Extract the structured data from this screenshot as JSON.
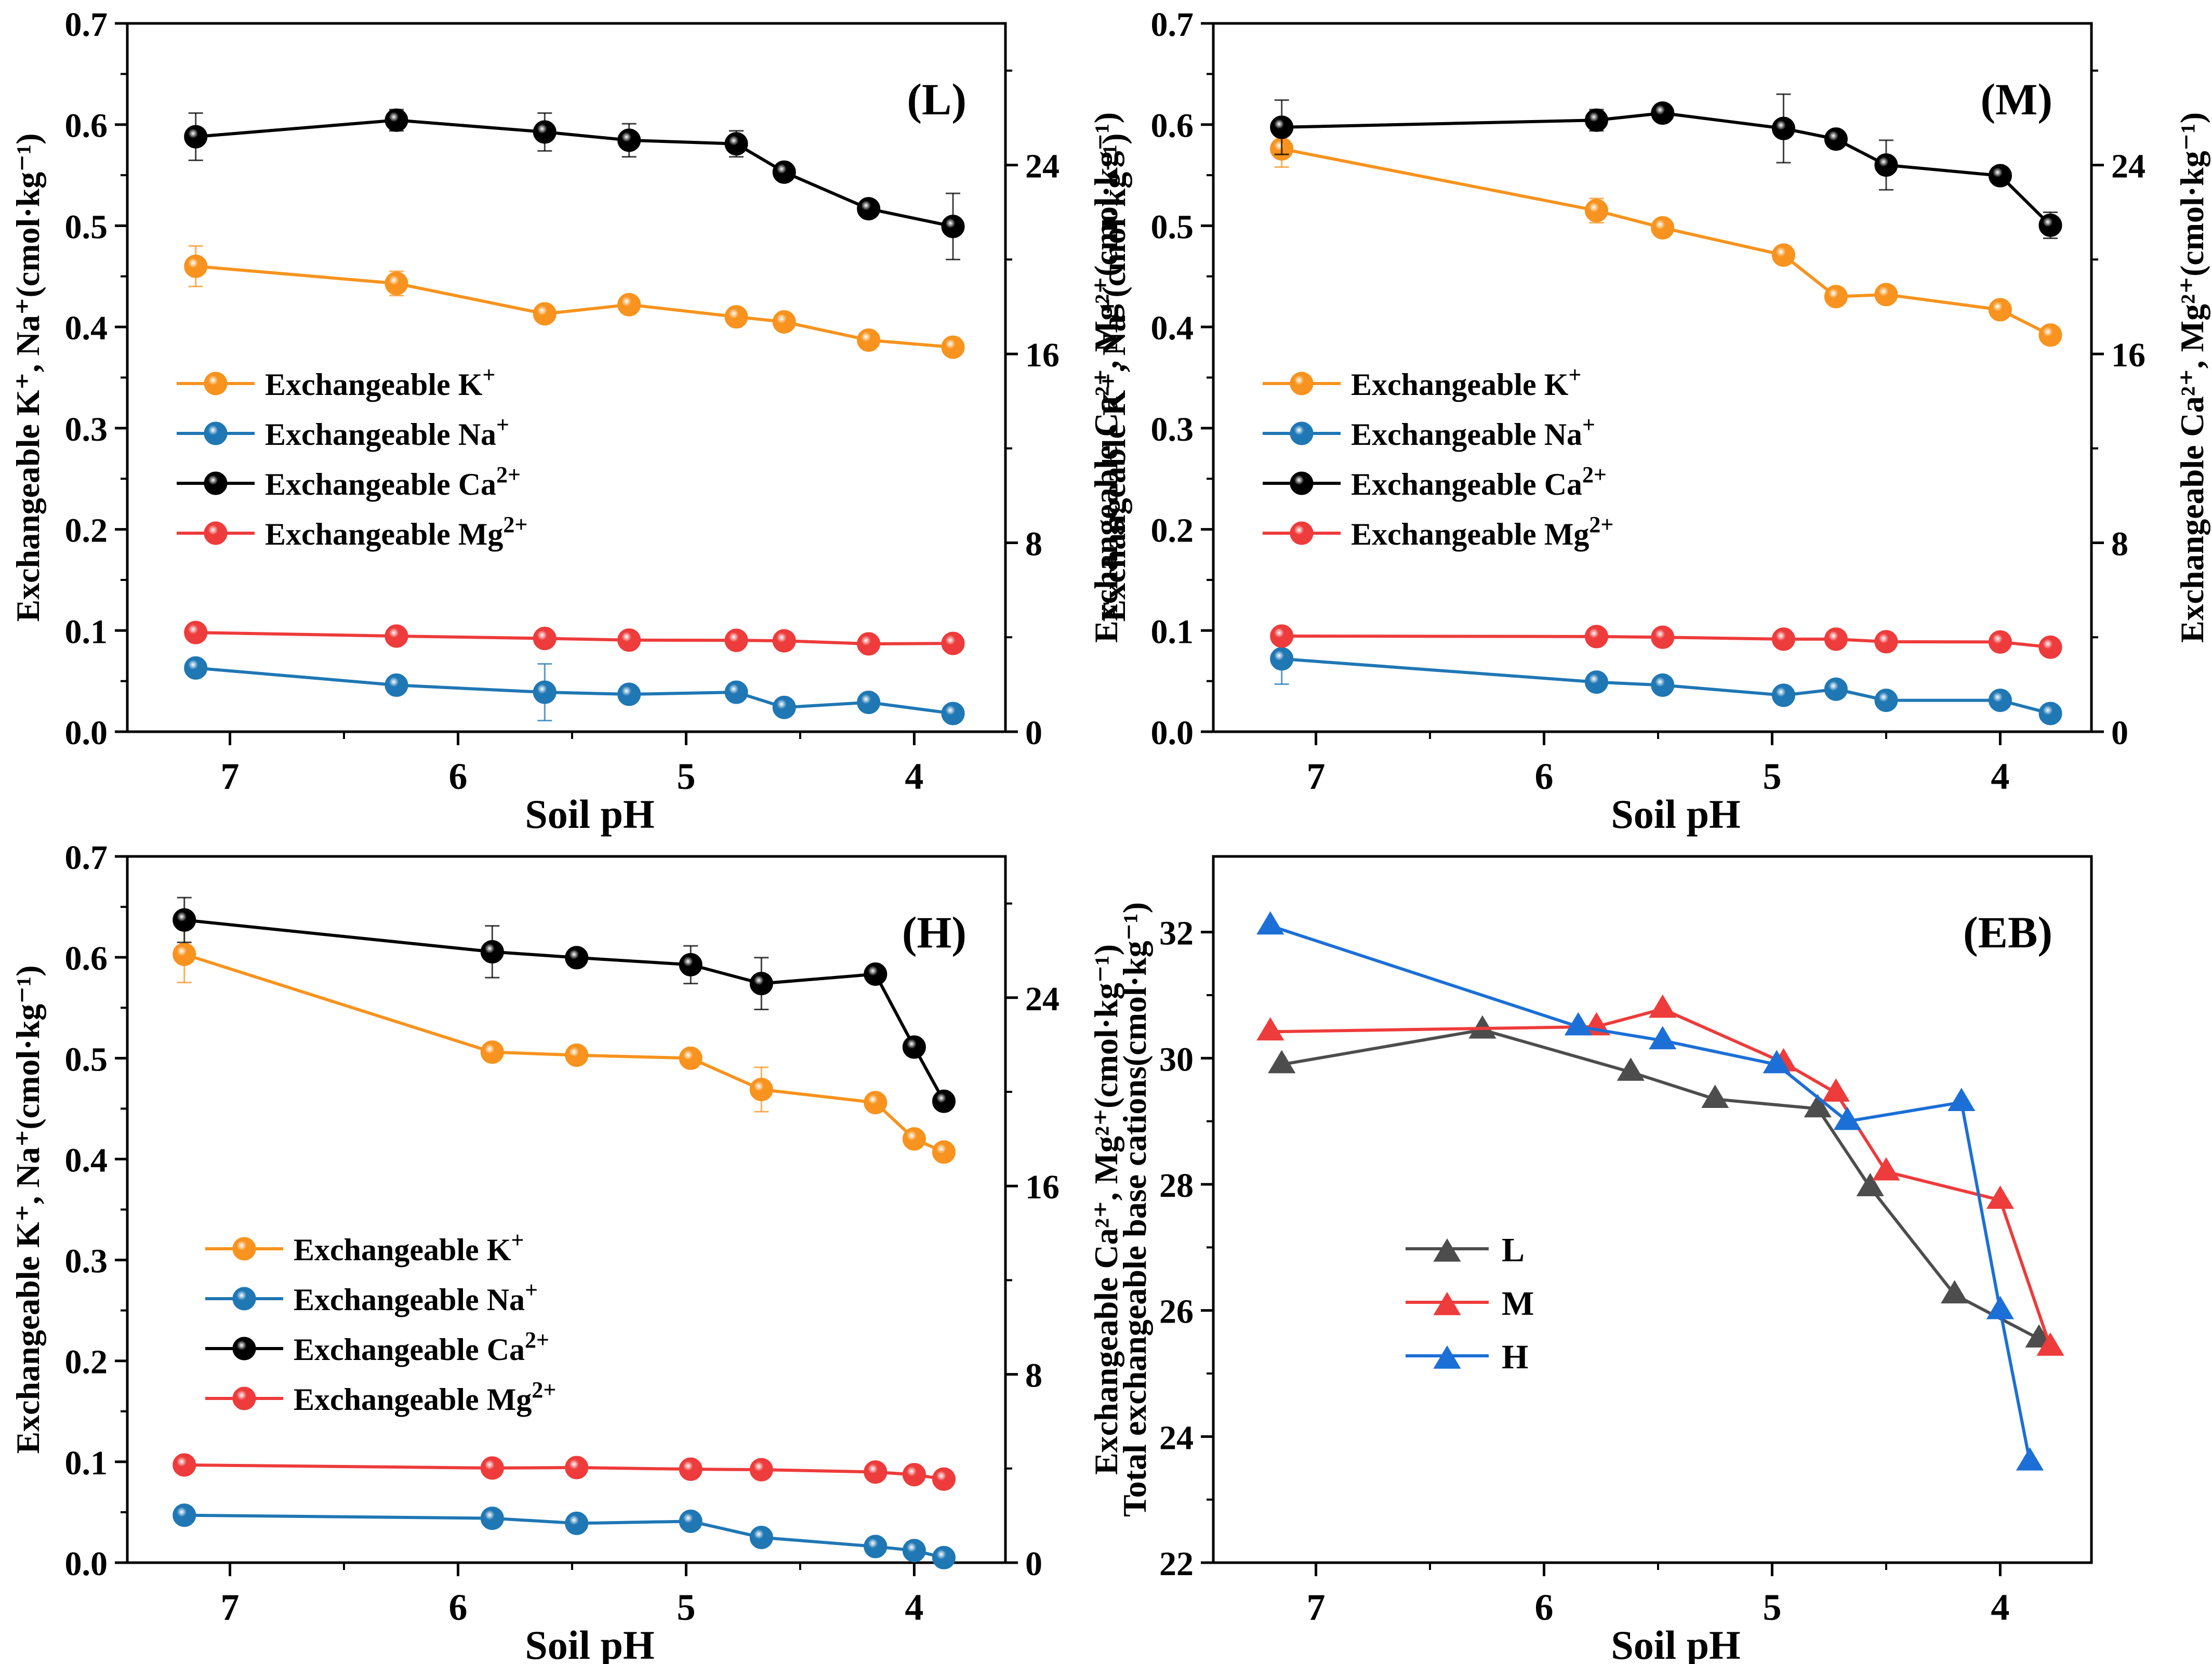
{
  "colors": {
    "K": "#F7931E",
    "Na": "#1F77B4",
    "Ca": "#000000",
    "Mg": "#EE3B3B",
    "L": "#4D4D4D",
    "M": "#EE3B3B",
    "H": "#1C6FD6"
  },
  "chart_data": [
    {
      "id": "L",
      "type": "line",
      "panel_label": "(L)",
      "xlabel": "Soil pH",
      "ylabel_left": "Exchangeable K⁺, Na⁺(cmol·kg⁻¹)",
      "ylabel_right": "Exchangeable Ca²⁺, Mg²⁺(cmol·kg⁻¹)",
      "xlim": [
        7.45,
        3.6
      ],
      "ylim_left": [
        0,
        0.7
      ],
      "ylim_right": [
        0,
        30
      ],
      "x_ticks": [
        "7",
        "6",
        "5",
        "4"
      ],
      "y_ticks_left": [
        "0.0",
        "0.1",
        "0.2",
        "0.3",
        "0.4",
        "0.5",
        "0.6",
        "0.7"
      ],
      "y_ticks_right": [
        "0",
        "8",
        "16",
        "24"
      ],
      "legend": {
        "position": "left-middle",
        "entries": [
          {
            "base": "Exchangeable K",
            "sup": "+"
          },
          {
            "base": "Exchangeable Na",
            "sup": "+"
          },
          {
            "base": "Exchangeable Ca",
            "sup": "2+"
          },
          {
            "base": "Exchangeable Mg",
            "sup": "2+"
          }
        ]
      },
      "series": [
        {
          "name": "Exchangeable K+",
          "color_key": "K",
          "axis": "left",
          "x": [
            7.15,
            6.27,
            5.62,
            5.25,
            4.78,
            4.57,
            4.2,
            3.83
          ],
          "y": [
            0.46,
            0.443,
            0.413,
            0.422,
            0.41,
            0.405,
            0.387,
            0.38
          ],
          "err": [
            0.02,
            0.012,
            0,
            0,
            0,
            0,
            0,
            0
          ]
        },
        {
          "name": "Exchangeable Na+",
          "color_key": "Na",
          "axis": "left",
          "x": [
            7.15,
            6.27,
            5.62,
            5.25,
            4.78,
            4.57,
            4.2,
            3.83
          ],
          "y": [
            0.063,
            0.046,
            0.039,
            0.037,
            0.039,
            0.024,
            0.029,
            0.018
          ],
          "err": [
            0,
            0,
            0.028,
            0,
            0,
            0,
            0,
            0
          ]
        },
        {
          "name": "Exchangeable Ca2+",
          "color_key": "Ca",
          "axis": "right",
          "x": [
            7.15,
            6.27,
            5.62,
            5.25,
            4.78,
            4.57,
            4.2,
            3.83
          ],
          "y": [
            25.2,
            25.9,
            25.4,
            25.05,
            24.9,
            23.7,
            22.15,
            21.4
          ],
          "err": [
            1.0,
            0.45,
            0.8,
            0.7,
            0.55,
            0,
            0,
            1.4
          ]
        },
        {
          "name": "Exchangeable Mg2+",
          "color_key": "Mg",
          "axis": "right",
          "x": [
            7.15,
            6.27,
            5.62,
            5.25,
            4.78,
            4.57,
            4.2,
            3.83
          ],
          "y": [
            4.2,
            4.05,
            3.95,
            3.88,
            3.87,
            3.85,
            3.72,
            3.74
          ],
          "err": [
            0,
            0,
            0,
            0,
            0,
            0,
            0,
            0
          ]
        }
      ]
    },
    {
      "id": "M",
      "type": "line",
      "panel_label": "(M)",
      "xlabel": "Soil pH",
      "ylabel_left": "Exchangeable K⁺, Na⁺(cmol·kg⁻¹)",
      "ylabel_right": "Exchangeable Ca²⁺, Mg²⁺(cmol·kg⁻¹)",
      "xlim": [
        7.45,
        3.6
      ],
      "ylim_left": [
        0,
        0.7
      ],
      "ylim_right": [
        0,
        30
      ],
      "x_ticks": [
        "7",
        "6",
        "5",
        "4"
      ],
      "y_ticks_left": [
        "0.0",
        "0.1",
        "0.2",
        "0.3",
        "0.4",
        "0.5",
        "0.6",
        "0.7"
      ],
      "y_ticks_right": [
        "0",
        "8",
        "16",
        "24"
      ],
      "legend": {
        "position": "left-middle",
        "entries": [
          {
            "base": "Exchangeable K",
            "sup": "+"
          },
          {
            "base": "Exchangeable Na",
            "sup": "+"
          },
          {
            "base": "Exchangeable Ca",
            "sup": "2+"
          },
          {
            "base": "Exchangeable Mg",
            "sup": "2+"
          }
        ]
      },
      "series": [
        {
          "name": "Exchangeable K+",
          "color_key": "K",
          "axis": "left",
          "x": [
            7.15,
            5.77,
            5.48,
            4.95,
            4.72,
            4.5,
            4.0,
            3.78
          ],
          "y": [
            0.576,
            0.515,
            0.498,
            0.471,
            0.43,
            0.432,
            0.417,
            0.392
          ],
          "err": [
            0.018,
            0.012,
            0,
            0,
            0,
            0,
            0,
            0
          ]
        },
        {
          "name": "Exchangeable Na+",
          "color_key": "Na",
          "axis": "left",
          "x": [
            7.15,
            5.77,
            5.48,
            4.95,
            4.72,
            4.5,
            4.0,
            3.78
          ],
          "y": [
            0.072,
            0.049,
            0.046,
            0.036,
            0.042,
            0.031,
            0.031,
            0.018
          ],
          "err": [
            0.025,
            0,
            0,
            0,
            0,
            0,
            0,
            0
          ]
        },
        {
          "name": "Exchangeable Ca2+",
          "color_key": "Ca",
          "axis": "right",
          "x": [
            7.15,
            5.77,
            5.48,
            4.95,
            4.72,
            4.5,
            4.0,
            3.78
          ],
          "y": [
            25.6,
            25.9,
            26.2,
            25.55,
            25.1,
            24.0,
            23.55,
            21.45
          ],
          "err": [
            1.15,
            0.45,
            0,
            1.45,
            0,
            1.05,
            0,
            0.55
          ]
        },
        {
          "name": "Exchangeable Mg2+",
          "color_key": "Mg",
          "axis": "right",
          "x": [
            7.15,
            5.77,
            5.48,
            4.95,
            4.72,
            4.5,
            4.0,
            3.78
          ],
          "y": [
            4.05,
            4.03,
            4.0,
            3.92,
            3.92,
            3.81,
            3.8,
            3.58
          ],
          "err": [
            0,
            0,
            0,
            0,
            0,
            0,
            0,
            0
          ]
        }
      ]
    },
    {
      "id": "H",
      "type": "line",
      "panel_label": "(H)",
      "xlabel": "Soil pH",
      "ylabel_left": "Exchangeable K⁺, Na⁺(cmol·kg⁻¹)",
      "ylabel_right": "Exchangeable Ca²⁺, Mg²⁺(cmol·kg⁻¹)",
      "xlim": [
        7.45,
        3.6
      ],
      "ylim_left": [
        0,
        0.7
      ],
      "ylim_right": [
        0,
        30
      ],
      "x_ticks": [
        "7",
        "6",
        "5",
        "4"
      ],
      "y_ticks_left": [
        "0.0",
        "0.1",
        "0.2",
        "0.3",
        "0.4",
        "0.5",
        "0.6",
        "0.7"
      ],
      "y_ticks_right": [
        "0",
        "8",
        "16",
        "24"
      ],
      "legend": {
        "position": "left-middle",
        "entries": [
          {
            "base": "Exchangeable K",
            "sup": "+"
          },
          {
            "base": "Exchangeable Na",
            "sup": "+"
          },
          {
            "base": "Exchangeable Ca",
            "sup": "2+"
          },
          {
            "base": "Exchangeable Mg",
            "sup": "2+"
          }
        ]
      },
      "series": [
        {
          "name": "Exchangeable K+",
          "color_key": "K",
          "axis": "left",
          "x": [
            7.2,
            5.85,
            5.48,
            4.98,
            4.67,
            4.17,
            4.0,
            3.87
          ],
          "y": [
            0.603,
            0.506,
            0.503,
            0.5,
            0.469,
            0.456,
            0.42,
            0.407
          ],
          "err": [
            0.028,
            0,
            0,
            0,
            0.022,
            0,
            0,
            0
          ]
        },
        {
          "name": "Exchangeable Na+",
          "color_key": "Na",
          "axis": "left",
          "x": [
            7.2,
            5.85,
            5.48,
            4.98,
            4.67,
            4.17,
            4.0,
            3.87
          ],
          "y": [
            0.047,
            0.044,
            0.039,
            0.041,
            0.025,
            0.016,
            0.012,
            0.005
          ],
          "err": [
            0,
            0,
            0,
            0,
            0,
            0,
            0,
            0
          ]
        },
        {
          "name": "Exchangeable Ca2+",
          "color_key": "Ca",
          "axis": "right",
          "x": [
            7.2,
            5.85,
            5.48,
            4.98,
            4.67,
            4.17,
            4.0,
            3.87
          ],
          "y": [
            27.3,
            25.95,
            25.7,
            25.4,
            24.6,
            25.0,
            21.9,
            19.6
          ],
          "err": [
            0.95,
            1.1,
            0,
            0.8,
            1.1,
            0,
            0,
            0
          ]
        },
        {
          "name": "Exchangeable Mg2+",
          "color_key": "Mg",
          "axis": "right",
          "x": [
            7.2,
            5.85,
            5.48,
            4.98,
            4.67,
            4.17,
            4.0,
            3.87
          ],
          "y": [
            4.15,
            4.02,
            4.04,
            3.97,
            3.95,
            3.85,
            3.74,
            3.55
          ],
          "err": [
            0,
            0,
            0,
            0,
            0,
            0,
            0,
            0
          ]
        }
      ]
    },
    {
      "id": "EB",
      "type": "line",
      "panel_label": "(EB)",
      "xlabel": "Soil pH",
      "ylabel": "Total exchangeable base cations(cmol·kg⁻¹)",
      "xlim": [
        7.45,
        3.6
      ],
      "ylim": [
        22,
        33.2
      ],
      "x_ticks": [
        "7",
        "6",
        "5",
        "4"
      ],
      "y_ticks": [
        "22",
        "24",
        "26",
        "28",
        "30",
        "32"
      ],
      "legend": {
        "position": "bottom-left",
        "entries": [
          {
            "base": "L"
          },
          {
            "base": "M"
          },
          {
            "base": "H"
          }
        ]
      },
      "series": [
        {
          "name": "L",
          "color_key": "L",
          "x": [
            7.15,
            6.27,
            5.62,
            5.25,
            4.8,
            4.57,
            4.2,
            3.83
          ],
          "y": [
            29.9,
            30.45,
            29.78,
            29.35,
            29.2,
            27.95,
            26.25,
            25.55
          ]
        },
        {
          "name": "M",
          "color_key": "M",
          "x": [
            7.2,
            5.77,
            5.48,
            4.95,
            4.72,
            4.5,
            4.0,
            3.78
          ],
          "y": [
            30.42,
            30.5,
            30.78,
            29.93,
            29.45,
            28.2,
            27.75,
            25.42
          ]
        },
        {
          "name": "H",
          "color_key": "H",
          "x": [
            7.2,
            5.85,
            5.48,
            4.98,
            4.67,
            4.17,
            4.0,
            3.87
          ],
          "y": [
            32.1,
            30.5,
            30.28,
            29.9,
            29.0,
            29.3,
            26.0,
            23.6
          ]
        }
      ]
    }
  ]
}
